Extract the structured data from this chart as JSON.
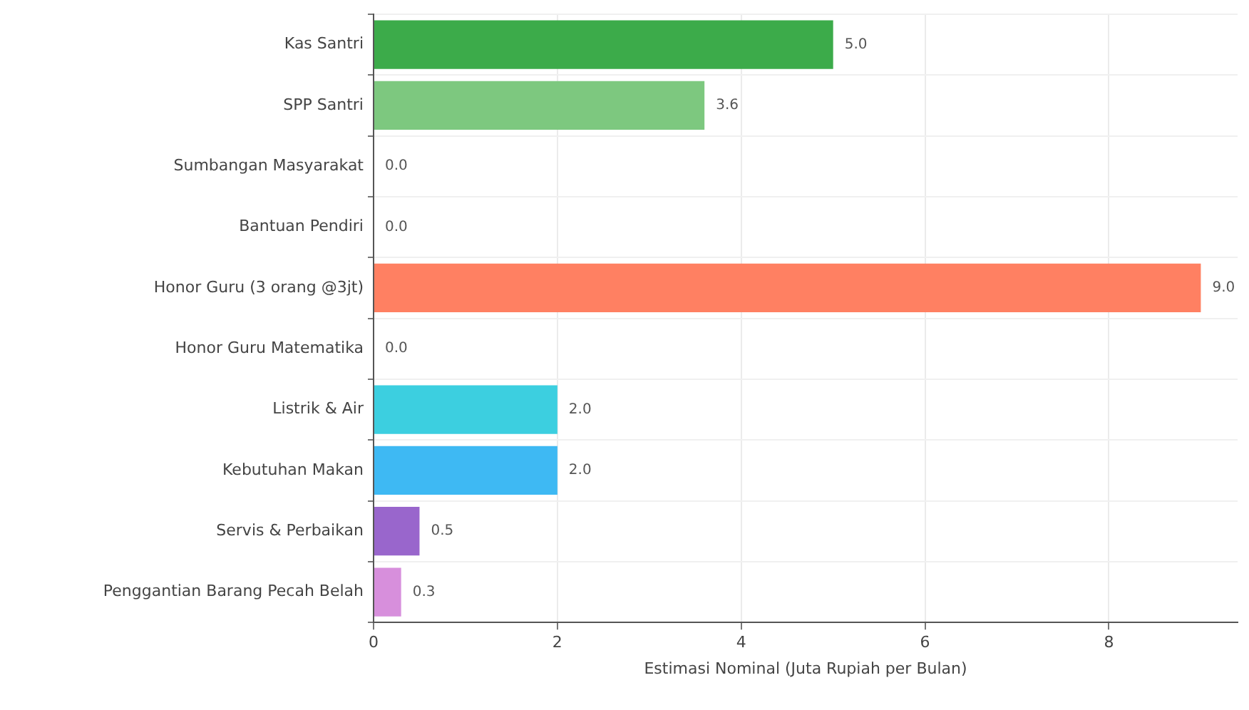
{
  "chart_data": {
    "type": "bar",
    "orientation": "horizontal",
    "xlabel": "Estimasi Nominal (Juta Rupiah per Bulan)",
    "categories": [
      "Kas Santri",
      "SPP Santri",
      "Sumbangan Masyarakat",
      "Bantuan Pendiri",
      "Honor Guru (3 orang @3jt)",
      "Honor Guru Matematika",
      "Listrik & Air",
      "Kebutuhan Makan",
      "Servis & Perbaikan",
      "Penggantian Barang Pecah Belah"
    ],
    "values": [
      5,
      3.6,
      0,
      0,
      9,
      0,
      2,
      2,
      0.5,
      0.3
    ],
    "colors": [
      "#3cab4a",
      "#7dc87f",
      "#9e9e9e",
      "#9e9e9e",
      "#ff8062",
      "#9e9e9e",
      "#3ccfe0",
      "#3eb9f3",
      "#9966cc",
      "#d78fdc"
    ],
    "value_labels": [
      "5.0",
      "3.6",
      "0.0",
      "0.0",
      "9.0",
      "0.0",
      "2.0",
      "2.0",
      "0.5",
      "0.3"
    ],
    "xlim": [
      0,
      9.4
    ],
    "xticks": [
      0,
      2,
      4,
      6,
      8
    ],
    "grid": true,
    "legend": false
  }
}
